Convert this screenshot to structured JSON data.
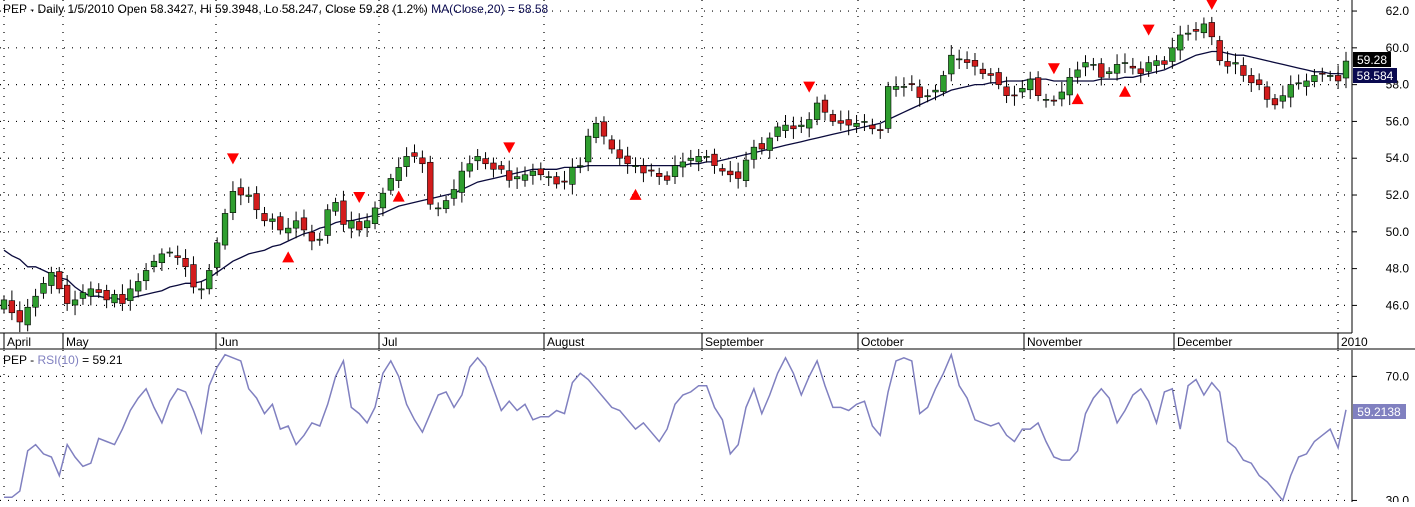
{
  "price_panel": {
    "header": {
      "symbol": "PEP",
      "date": "Daily 1/5/2010",
      "open": "Open 58.3427",
      "hi": "Hi 59.3948",
      "lo": "Lo 58.247",
      "close": "Close 59.28 (1.2%)",
      "ma_label": "MA(Close,20) = 58.58"
    },
    "header_full": "PEP - Daily 1/5/2010 Open 58.3427, Hi 59.3948, Lo 58.247, Close 59.28 (1.2%) MA(Close,20) = 58.58",
    "last_close_label": "59.28",
    "ma_value_label": "58.584"
  },
  "rsi_panel": {
    "header_prefix": "PEP - ",
    "header_name": "RSI(10)",
    "header_value": " = 59.21",
    "value_label": "59.2138"
  },
  "colors": {
    "up": "#2f9e2f",
    "down": "#d21c1c",
    "ma": "#0a0a3c",
    "rsi": "#8080c0",
    "grid": "#000000",
    "last_close_bg": "#000000",
    "ma_bg": "#0a0a50",
    "rsi_bg": "#8080c0"
  },
  "chart_data": [
    {
      "type": "candlestick",
      "title": "PEP - Daily 1/5/2010",
      "x_labels": [
        "April",
        "May",
        "Jun",
        "Jul",
        "August",
        "September",
        "October",
        "November",
        "December",
        "2010"
      ],
      "y_ticks": [
        "46.0",
        "48.0",
        "50.0",
        "52.0",
        "54.0",
        "56.0",
        "58.0",
        "60.0",
        "62.0"
      ],
      "ylim": [
        44.5,
        62.6
      ],
      "grid": true,
      "close": [
        46.3,
        45.6,
        45.1,
        45.9,
        46.5,
        47.2,
        47.8,
        46.9,
        46.1,
        46.3,
        46.7,
        46.9,
        46.7,
        46.3,
        46.6,
        46.1,
        46.9,
        47.3,
        47.9,
        48.4,
        48.8,
        48.9,
        48.6,
        48.1,
        47.0,
        46.9,
        47.9,
        49.4,
        51.0,
        52.2,
        52.0,
        52.0,
        51.2,
        50.6,
        50.7,
        50.1,
        50.2,
        50.6,
        50.1,
        49.5,
        49.6,
        51.2,
        51.6,
        50.4,
        50.6,
        50.1,
        50.6,
        51.3,
        52.1,
        52.9,
        53.5,
        54.1,
        54.1,
        53.7,
        51.5,
        51.3,
        51.7,
        52.3,
        53.3,
        53.7,
        54.1,
        53.7,
        53.4,
        53.4,
        52.8,
        53.0,
        53.1,
        53.3,
        53.1,
        53.0,
        52.6,
        52.7,
        53.5,
        53.6,
        55.2,
        55.9,
        55.2,
        54.5,
        54.0,
        53.7,
        53.6,
        53.2,
        53.3,
        53.0,
        52.8,
        53.6,
        53.8,
        54.0,
        54.1,
        54.1,
        53.6,
        53.3,
        53.1,
        52.9,
        53.9,
        54.6,
        54.5,
        55.1,
        55.7,
        55.8,
        55.6,
        55.8,
        56.1,
        57.0,
        56.5,
        56.0,
        55.9,
        55.8,
        55.9,
        56.0,
        55.6,
        55.5,
        57.9,
        57.9,
        57.9,
        58.0,
        57.3,
        57.4,
        57.7,
        58.5,
        59.6,
        59.4,
        59.2,
        59.0,
        58.6,
        58.5,
        58.0,
        57.4,
        57.4,
        57.8,
        58.3,
        57.4,
        57.2,
        57.1,
        57.6,
        58.4,
        58.8,
        59.2,
        59.1,
        58.4,
        58.7,
        59.1,
        59.2,
        58.9,
        58.6,
        59.2,
        59.3,
        59.1,
        60.0,
        60.7,
        60.8,
        60.9,
        61.3,
        60.6,
        59.3,
        59.0,
        59.2,
        58.5,
        58.1,
        58.0,
        57.2,
        56.9,
        57.4,
        58.0,
        58.1,
        58.2,
        58.5,
        58.6,
        58.5,
        58.2,
        59.28
      ],
      "ma20": [
        49.0,
        48.7,
        48.5,
        48.1,
        48.1,
        47.9,
        47.7,
        47.5,
        47.4,
        47.0,
        46.7,
        46.5,
        46.5,
        46.4,
        46.4,
        46.3,
        46.4,
        46.5,
        46.6,
        46.7,
        46.8,
        47.0,
        47.1,
        47.2,
        47.2,
        47.3,
        47.5,
        47.8,
        48.1,
        48.4,
        48.6,
        48.8,
        48.9,
        49.0,
        49.2,
        49.3,
        49.5,
        49.7,
        49.9,
        50.0,
        50.2,
        50.3,
        50.5,
        50.6,
        50.6,
        50.7,
        50.8,
        50.9,
        51.0,
        51.2,
        51.4,
        51.5,
        51.6,
        51.7,
        51.8,
        51.9,
        52.0,
        52.1,
        52.3,
        52.5,
        52.7,
        52.8,
        52.9,
        53.0,
        53.1,
        53.2,
        53.3,
        53.4,
        53.4,
        53.4,
        53.4,
        53.5,
        53.5,
        53.5,
        53.6,
        53.6,
        53.6,
        53.6,
        53.6,
        53.6,
        53.6,
        53.6,
        53.6,
        53.6,
        53.6,
        53.6,
        53.6,
        53.7,
        53.7,
        53.8,
        53.8,
        53.9,
        54.0,
        54.1,
        54.2,
        54.3,
        54.4,
        54.5,
        54.6,
        54.7,
        54.8,
        54.9,
        55.0,
        55.1,
        55.2,
        55.3,
        55.4,
        55.5,
        55.6,
        55.7,
        55.8,
        55.9,
        56.1,
        56.3,
        56.5,
        56.7,
        56.9,
        57.1,
        57.3,
        57.5,
        57.7,
        57.8,
        57.9,
        58.0,
        58.0,
        58.1,
        58.1,
        58.2,
        58.2,
        58.2,
        58.3,
        58.3,
        58.3,
        58.2,
        58.2,
        58.2,
        58.2,
        58.2,
        58.2,
        58.3,
        58.3,
        58.3,
        58.4,
        58.4,
        58.5,
        58.6,
        58.7,
        58.8,
        59.0,
        59.2,
        59.4,
        59.6,
        59.7,
        59.8,
        59.8,
        59.7,
        59.6,
        59.6,
        59.5,
        59.4,
        59.3,
        59.2,
        59.1,
        59.0,
        58.9,
        58.8,
        58.7,
        58.7,
        58.6,
        58.6,
        58.58
      ],
      "sell_markers": [
        29,
        45,
        64,
        102,
        133,
        145,
        153
      ],
      "buy_markers": [
        36,
        50,
        80,
        136,
        142
      ]
    },
    {
      "type": "line",
      "title": "RSI(10)",
      "y_ticks": [
        "30.0",
        "70.0"
      ],
      "ylim": [
        29.5,
        78.5
      ],
      "grid": true,
      "rsi": [
        31,
        31,
        33,
        46,
        48,
        45,
        44,
        38,
        48,
        44,
        41,
        42,
        50,
        49,
        48,
        53,
        59,
        63,
        66,
        60,
        55,
        62,
        66,
        65,
        59,
        52,
        67,
        73,
        77,
        76,
        75,
        66,
        63,
        58,
        61,
        53,
        54,
        48,
        51,
        55,
        54,
        61,
        70,
        75,
        60,
        58,
        55,
        60,
        71,
        75,
        70,
        61,
        56,
        52,
        58,
        64,
        65,
        60,
        64,
        73,
        76,
        73,
        66,
        59,
        62,
        59,
        61,
        56,
        57,
        57,
        59,
        58,
        68,
        71,
        69,
        66,
        63,
        60,
        59,
        56,
        53,
        55,
        52,
        49,
        53,
        61,
        64,
        65,
        67,
        67,
        60,
        56,
        45,
        48,
        60,
        66,
        58,
        64,
        71,
        76,
        71,
        64,
        70,
        75,
        67,
        60,
        60,
        59,
        61,
        62,
        54,
        51,
        65,
        75,
        76,
        75,
        58,
        60,
        66,
        71,
        77,
        67,
        63,
        56,
        55,
        54,
        55,
        51,
        49,
        53,
        53,
        55,
        49,
        44,
        43,
        43,
        46,
        58,
        63,
        66,
        63,
        55,
        59,
        64,
        66,
        62,
        55,
        65,
        66,
        53,
        67,
        69,
        64,
        68,
        65,
        49,
        47,
        43,
        42,
        38,
        36,
        33,
        30,
        38,
        44,
        45,
        49,
        51,
        53,
        47,
        59.21
      ]
    }
  ]
}
